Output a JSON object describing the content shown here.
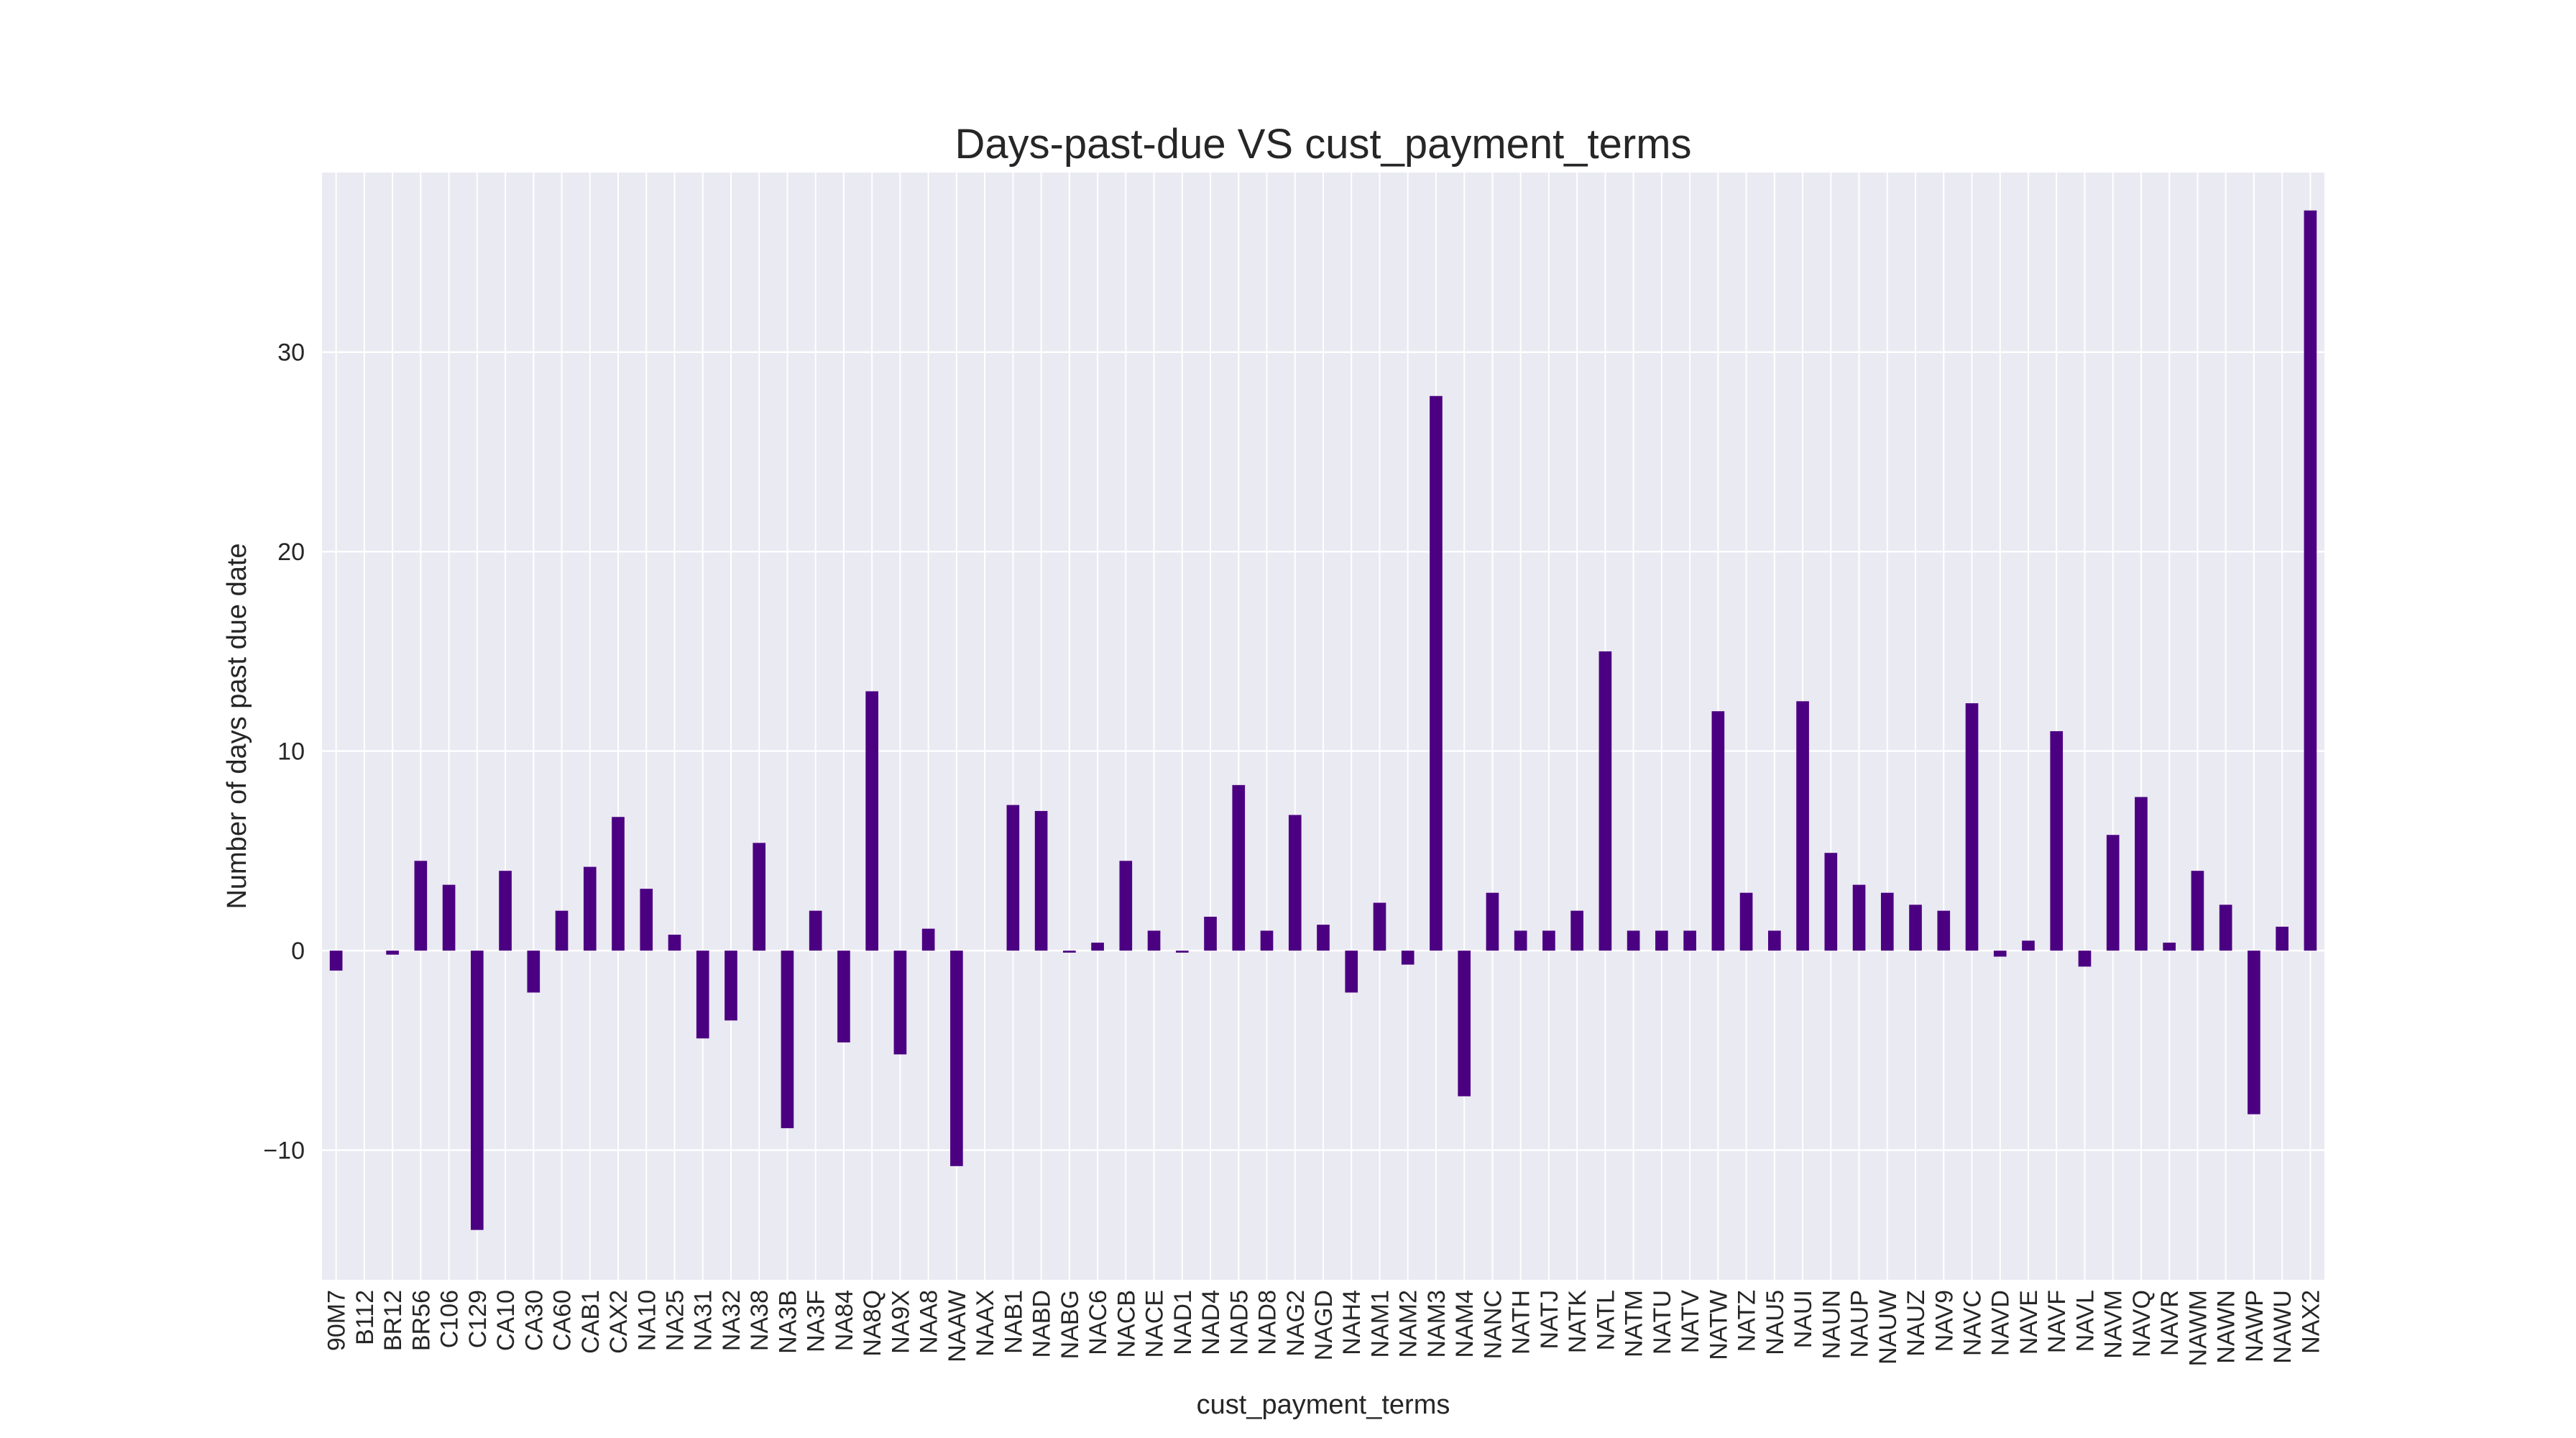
{
  "colors": {
    "bar": "#4b0082",
    "plot_bg": "#eaeaf2",
    "grid": "#ffffff",
    "text": "#262626"
  },
  "chart_data": {
    "type": "bar",
    "title": "Days-past-due VS cust_payment_terms",
    "xlabel": "cust_payment_terms",
    "ylabel": "Number of days past due date",
    "ylim": [
      -16.5,
      39
    ],
    "yticks": [
      -10,
      0,
      10,
      20,
      30
    ],
    "ytick_labels": [
      "−10",
      "0",
      "10",
      "20",
      "30"
    ],
    "grid": true,
    "legend": "none",
    "categories": [
      "90M7",
      "B112",
      "BR12",
      "BR56",
      "C106",
      "C129",
      "CA10",
      "CA30",
      "CA60",
      "CAB1",
      "CAX2",
      "NA10",
      "NA25",
      "NA31",
      "NA32",
      "NA38",
      "NA3B",
      "NA3F",
      "NA84",
      "NA8Q",
      "NA9X",
      "NAA8",
      "NAAW",
      "NAAX",
      "NAB1",
      "NABD",
      "NABG",
      "NAC6",
      "NACB",
      "NACE",
      "NAD1",
      "NAD4",
      "NAD5",
      "NAD8",
      "NAG2",
      "NAGD",
      "NAH4",
      "NAM1",
      "NAM2",
      "NAM3",
      "NAM4",
      "NANC",
      "NATH",
      "NATJ",
      "NATK",
      "NATL",
      "NATM",
      "NATU",
      "NATV",
      "NATW",
      "NATZ",
      "NAU5",
      "NAUI",
      "NAUN",
      "NAUP",
      "NAUW",
      "NAUZ",
      "NAV9",
      "NAVC",
      "NAVD",
      "NAVE",
      "NAVF",
      "NAVL",
      "NAVM",
      "NAVQ",
      "NAVR",
      "NAWM",
      "NAWN",
      "NAWP",
      "NAWU",
      "NAX2"
    ],
    "values": [
      -1.0,
      0.0,
      -0.2,
      4.5,
      3.3,
      -14.0,
      4.0,
      -2.1,
      2.0,
      4.2,
      6.7,
      3.1,
      0.8,
      -4.4,
      -3.5,
      5.4,
      -8.9,
      2.0,
      -4.6,
      13.0,
      -5.2,
      1.1,
      -10.8,
      0.0,
      7.3,
      7.0,
      -0.1,
      0.4,
      4.5,
      1.0,
      -0.1,
      1.7,
      8.3,
      1.0,
      6.8,
      1.3,
      -2.1,
      2.4,
      -0.7,
      27.8,
      -7.3,
      2.9,
      1.0,
      1.0,
      2.0,
      15.0,
      1.0,
      1.0,
      1.0,
      12.0,
      2.9,
      1.0,
      12.5,
      4.9,
      3.3,
      2.9,
      2.3,
      2.0,
      12.4,
      -0.3,
      0.5,
      11.0,
      -0.8,
      5.8,
      7.7,
      0.4,
      4.0,
      2.3,
      -8.2,
      1.2,
      37.1
    ]
  }
}
